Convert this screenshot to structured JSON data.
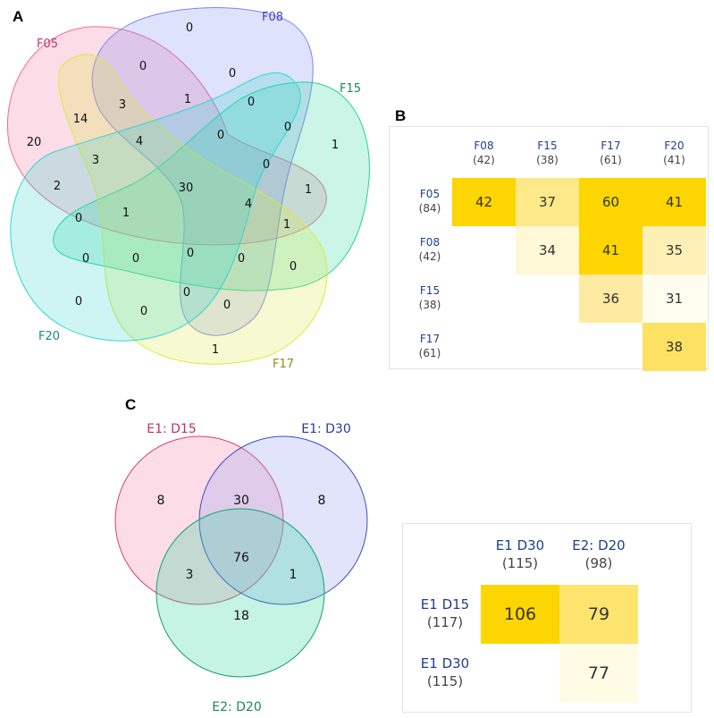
{
  "panels": {
    "a": "A",
    "b": "B",
    "c": "C"
  },
  "venn5": {
    "sets": {
      "f05": "F05",
      "f08": "F08",
      "f15": "F15",
      "f17": "F17",
      "f20": "F20"
    },
    "colors": {
      "f05": "#f26c95",
      "f08": "#7b86f0",
      "f15": "#22d49a",
      "f17": "#dcea3c",
      "f20": "#33d6d2"
    },
    "regions": [
      {
        "id": "r1",
        "value": "0"
      },
      {
        "id": "r2",
        "value": "0"
      },
      {
        "id": "r3",
        "value": "0"
      },
      {
        "id": "r4",
        "value": "1"
      },
      {
        "id": "r5",
        "value": "0"
      },
      {
        "id": "r6",
        "value": "3"
      },
      {
        "id": "r7",
        "value": "14"
      },
      {
        "id": "r8",
        "value": "0"
      },
      {
        "id": "r9",
        "value": "0"
      },
      {
        "id": "r10",
        "value": "20"
      },
      {
        "id": "r11",
        "value": "4"
      },
      {
        "id": "r12",
        "value": "1"
      },
      {
        "id": "r13",
        "value": "3"
      },
      {
        "id": "r14",
        "value": "0"
      },
      {
        "id": "r15",
        "value": "1"
      },
      {
        "id": "r16",
        "value": "2"
      },
      {
        "id": "r17",
        "value": "30"
      },
      {
        "id": "r18",
        "value": "0"
      },
      {
        "id": "r19",
        "value": "1"
      },
      {
        "id": "r20",
        "value": "4"
      },
      {
        "id": "r21",
        "value": "1"
      },
      {
        "id": "r22",
        "value": "0"
      },
      {
        "id": "r23",
        "value": "0"
      },
      {
        "id": "r24",
        "value": "0"
      },
      {
        "id": "r25",
        "value": "0"
      },
      {
        "id": "r26",
        "value": "0"
      },
      {
        "id": "r27",
        "value": "0"
      },
      {
        "id": "r28",
        "value": "0"
      },
      {
        "id": "r29",
        "value": "0"
      },
      {
        "id": "r30",
        "value": "0"
      },
      {
        "id": "r31",
        "value": "1"
      }
    ]
  },
  "matrix1": {
    "columns": [
      {
        "label": "F08",
        "count": "(42)"
      },
      {
        "label": "F15",
        "count": "(38)"
      },
      {
        "label": "F17",
        "count": "(61)"
      },
      {
        "label": "F20",
        "count": "(41)"
      }
    ],
    "rows": [
      {
        "label": "F05",
        "count": "(84)"
      },
      {
        "label": "F08",
        "count": "(42)"
      },
      {
        "label": "F15",
        "count": "(38)"
      },
      {
        "label": "F17",
        "count": "(61)"
      }
    ],
    "cells": [
      {
        "row": 0,
        "col": 0,
        "value": "42",
        "color": "#fdd500"
      },
      {
        "row": 0,
        "col": 1,
        "value": "37",
        "color": "#fde98a"
      },
      {
        "row": 0,
        "col": 2,
        "value": "60",
        "color": "#fdd500"
      },
      {
        "row": 0,
        "col": 3,
        "value": "41",
        "color": "#fdd500"
      },
      {
        "row": 1,
        "col": 1,
        "value": "34",
        "color": "#fef8d6"
      },
      {
        "row": 1,
        "col": 2,
        "value": "41",
        "color": "#fdd500"
      },
      {
        "row": 1,
        "col": 3,
        "value": "35",
        "color": "#fef0b5"
      },
      {
        "row": 2,
        "col": 2,
        "value": "36",
        "color": "#feeaa0"
      },
      {
        "row": 2,
        "col": 3,
        "value": "31",
        "color": "#fffdee"
      },
      {
        "row": 3,
        "col": 3,
        "value": "38",
        "color": "#fde162"
      }
    ]
  },
  "venn3": {
    "sets": {
      "a": "E1: D15",
      "b": "E1: D30",
      "c": "E2: D20"
    },
    "colors": {
      "a": "#f48cb0",
      "b": "#9aa4f2",
      "c": "#3ed8a6"
    },
    "regions": {
      "a_only": "8",
      "b_only": "8",
      "c_only": "18",
      "ab": "30",
      "ac": "3",
      "bc": "1",
      "abc": "76"
    }
  },
  "matrix2": {
    "columns": [
      {
        "label": "E1 D30",
        "count": "(115)"
      },
      {
        "label": "E2: D20",
        "count": "(98)"
      }
    ],
    "rows": [
      {
        "label": "E1 D15",
        "count": "(117)"
      },
      {
        "label": "E1 D30",
        "count": "(115)"
      }
    ],
    "cells": [
      {
        "row": 0,
        "col": 0,
        "value": "106",
        "color": "#fdd500"
      },
      {
        "row": 0,
        "col": 1,
        "value": "79",
        "color": "#fde46e"
      },
      {
        "row": 1,
        "col": 1,
        "value": "77",
        "color": "#fffbe4"
      }
    ]
  }
}
